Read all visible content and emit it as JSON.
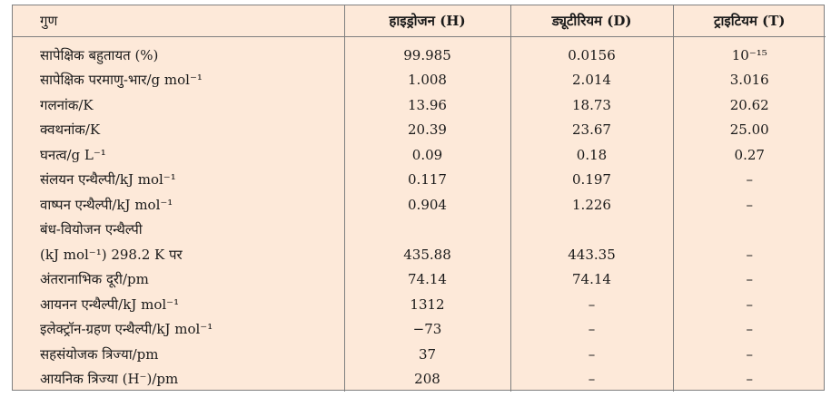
{
  "table": {
    "headers": [
      "गुण",
      "हाइड्रोजन (H)",
      "ड्यूटीरियम (D)",
      "ट्राइटियम (T)"
    ],
    "rows": [
      [
        "सापेक्षिक बहुतायत (%)",
        "99.985",
        "0.0156",
        "10⁻¹⁵"
      ],
      [
        "सापेक्षिक परमाणु-भार/g mol⁻¹",
        "1.008",
        "2.014",
        "3.016"
      ],
      [
        "गलनांक/K",
        "13.96",
        "18.73",
        "20.62"
      ],
      [
        "क्वथनांक/K",
        "20.39",
        "23.67",
        "25.00"
      ],
      [
        "घनत्व/g L⁻¹",
        "0.09",
        "0.18",
        "0.27"
      ],
      [
        "संलयन एन्थैल्पी/kJ mol⁻¹",
        "0.117",
        "0.197",
        "–"
      ],
      [
        "वाष्पन एन्थैल्पी/kJ mol⁻¹",
        "0.904",
        "1.226",
        "–"
      ],
      [
        "बंध-वियोजन एन्थैल्पी",
        "",
        "",
        ""
      ],
      [
        "(kJ mol⁻¹) 298.2 K पर",
        "435.88",
        "443.35",
        "–"
      ],
      [
        "अंतरानाभिक दूरी/pm",
        "74.14",
        "74.14",
        "–"
      ],
      [
        "आयनन एन्थैल्पी/kJ mol⁻¹",
        "1312",
        "–",
        "–"
      ],
      [
        "इलेक्ट्रॉन-ग्रहण एन्थैल्पी/kJ mol⁻¹",
        "−73",
        "–",
        "–"
      ],
      [
        "सहसंयोजक त्रिज्या/pm",
        "37",
        "–",
        "–"
      ],
      [
        "आयनिक त्रिज्या (H⁻)/pm",
        "208",
        "–",
        "–"
      ]
    ]
  }
}
